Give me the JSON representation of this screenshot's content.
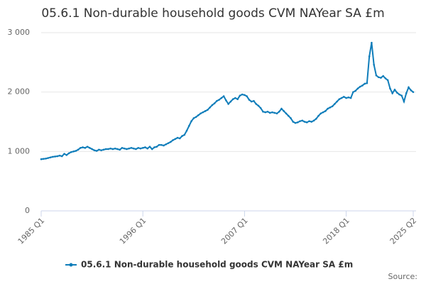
{
  "chart_data": {
    "type": "line",
    "title": "05.6.1 Non-durable household goods CVM NAYear SA £m",
    "source_label": "Source:",
    "categories": [
      "1985 Q1",
      null,
      null,
      null,
      null,
      null,
      null,
      null,
      null,
      null,
      null,
      null,
      null,
      null,
      null,
      null,
      null,
      null,
      null,
      null,
      null,
      null,
      null,
      null,
      null,
      null,
      null,
      null,
      null,
      null,
      null,
      null,
      null,
      null,
      null,
      null,
      null,
      null,
      null,
      null,
      null,
      null,
      null,
      null,
      "1996 Q1",
      null,
      null,
      null,
      null,
      null,
      null,
      null,
      null,
      null,
      null,
      null,
      null,
      null,
      null,
      null,
      null,
      null,
      null,
      null,
      null,
      null,
      null,
      null,
      null,
      null,
      null,
      null,
      null,
      null,
      null,
      null,
      null,
      null,
      null,
      null,
      null,
      null,
      null,
      null,
      null,
      null,
      null,
      null,
      "2007 Q1",
      null,
      null,
      null,
      null,
      null,
      null,
      null,
      null,
      null,
      null,
      null,
      null,
      null,
      null,
      null,
      null,
      null,
      null,
      null,
      null,
      null,
      null,
      null,
      null,
      null,
      null,
      null,
      null,
      null,
      null,
      null,
      null,
      null,
      null,
      null,
      null,
      null,
      null,
      null,
      null,
      null,
      null,
      null,
      "2018 Q1",
      null,
      null,
      null,
      null,
      null,
      null,
      null,
      null,
      null,
      null,
      null,
      null,
      null,
      null,
      null,
      null,
      null,
      null,
      null,
      null,
      null,
      null,
      null,
      null,
      null,
      null,
      null,
      null,
      "2025 Q2"
    ],
    "series": [
      {
        "name": "05.6.1 Non-durable household goods CVM NAYear SA £m",
        "color": "#0f7dba",
        "values": [
          870,
          875,
          880,
          890,
          900,
          910,
          915,
          920,
          930,
          920,
          960,
          940,
          970,
          990,
          1000,
          1010,
          1030,
          1060,
          1070,
          1060,
          1080,
          1060,
          1040,
          1020,
          1010,
          1030,
          1020,
          1030,
          1040,
          1040,
          1050,
          1040,
          1050,
          1040,
          1030,
          1060,
          1050,
          1040,
          1050,
          1060,
          1050,
          1040,
          1060,
          1050,
          1060,
          1070,
          1050,
          1080,
          1040,
          1070,
          1080,
          1110,
          1110,
          1100,
          1120,
          1140,
          1160,
          1190,
          1210,
          1230,
          1220,
          1260,
          1280,
          1350,
          1430,
          1510,
          1560,
          1580,
          1610,
          1640,
          1660,
          1680,
          1700,
          1740,
          1780,
          1810,
          1850,
          1870,
          1900,
          1930,
          1860,
          1800,
          1840,
          1880,
          1900,
          1880,
          1940,
          1960,
          1950,
          1930,
          1870,
          1840,
          1850,
          1800,
          1770,
          1730,
          1670,
          1660,
          1670,
          1650,
          1660,
          1650,
          1640,
          1670,
          1720,
          1680,
          1640,
          1600,
          1560,
          1500,
          1480,
          1490,
          1510,
          1520,
          1500,
          1490,
          1510,
          1500,
          1520,
          1550,
          1600,
          1640,
          1660,
          1680,
          1720,
          1740,
          1760,
          1800,
          1840,
          1880,
          1900,
          1920,
          1900,
          1910,
          1900,
          2000,
          2020,
          2060,
          2090,
          2110,
          2140,
          2150,
          2600,
          2830,
          2460,
          2280,
          2250,
          2240,
          2270,
          2230,
          2200,
          2060,
          1980,
          2040,
          1990,
          1960,
          1940,
          1840,
          1980,
          2080,
          2030,
          2000
        ]
      }
    ],
    "ylim": [
      0,
      3000
    ],
    "yticks": [
      0,
      {
        "value": 1000,
        "label": "1 000"
      },
      {
        "value": 2000,
        "label": "2 000"
      },
      {
        "value": 3000,
        "label": "3 000"
      }
    ],
    "grid": true
  }
}
